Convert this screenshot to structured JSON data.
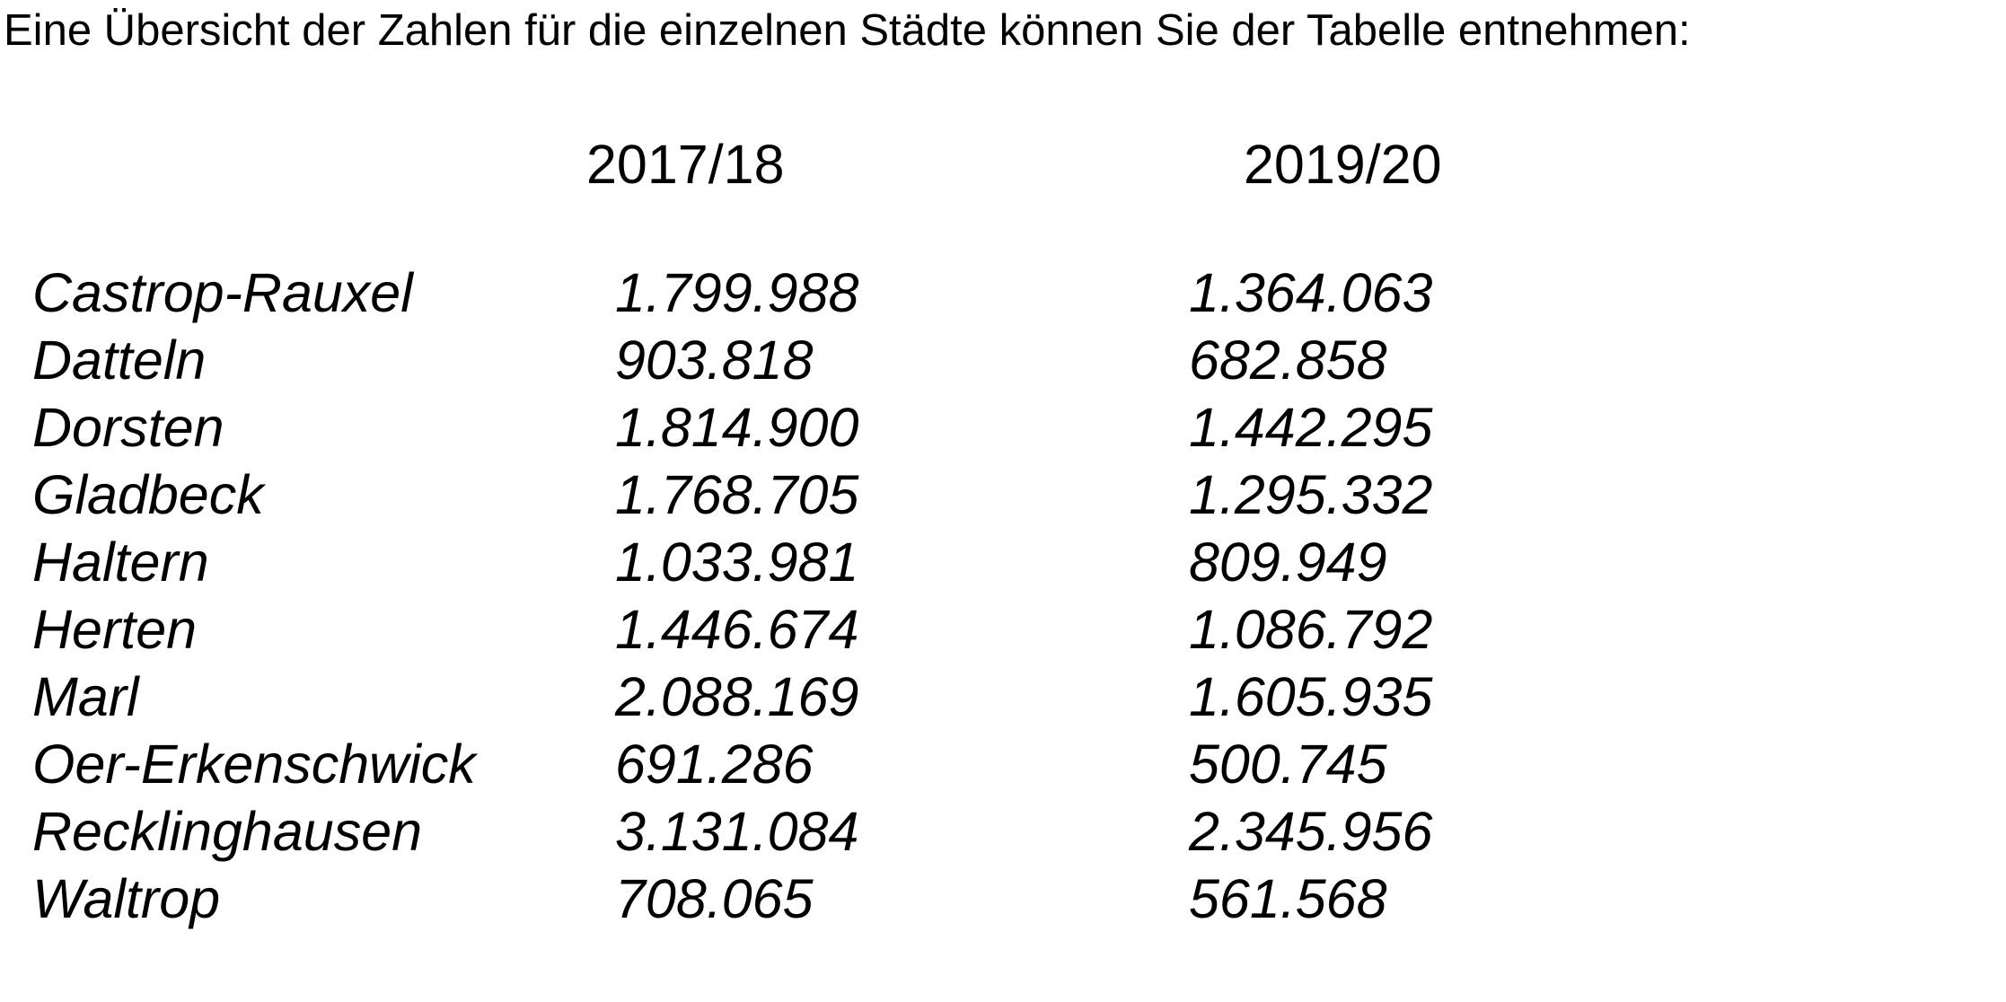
{
  "document": {
    "intro": "Eine Übersicht der Zahlen für die einzelnen Städte können Sie der Tabelle entnehmen:"
  },
  "table": {
    "columns": [
      "2017/18",
      "2019/20"
    ],
    "rows": [
      {
        "city": "Castrop-Rauxel",
        "v1": "1.799.988",
        "v2": "1.364.063"
      },
      {
        "city": "Datteln",
        "v1": "903.818",
        "v2": "682.858"
      },
      {
        "city": "Dorsten",
        "v1": "1.814.900",
        "v2": "1.442.295"
      },
      {
        "city": "Gladbeck",
        "v1": "1.768.705",
        "v2": "1.295.332"
      },
      {
        "city": "Haltern",
        "v1": "1.033.981",
        "v2": "809.949"
      },
      {
        "city": "Herten",
        "v1": "1.446.674",
        "v2": "1.086.792"
      },
      {
        "city": "Marl",
        "v1": "2.088.169",
        "v2": "1.605.935"
      },
      {
        "city": "Oer-Erkenschwick",
        "v1": "691.286",
        "v2": "500.745"
      },
      {
        "city": "Recklinghausen",
        "v1": "3.131.084",
        "v2": "2.345.956"
      },
      {
        "city": "Waltrop",
        "v1": "708.065",
        "v2": "561.568"
      }
    ]
  },
  "colors": {
    "text": "#000000",
    "background": "#ffffff"
  }
}
